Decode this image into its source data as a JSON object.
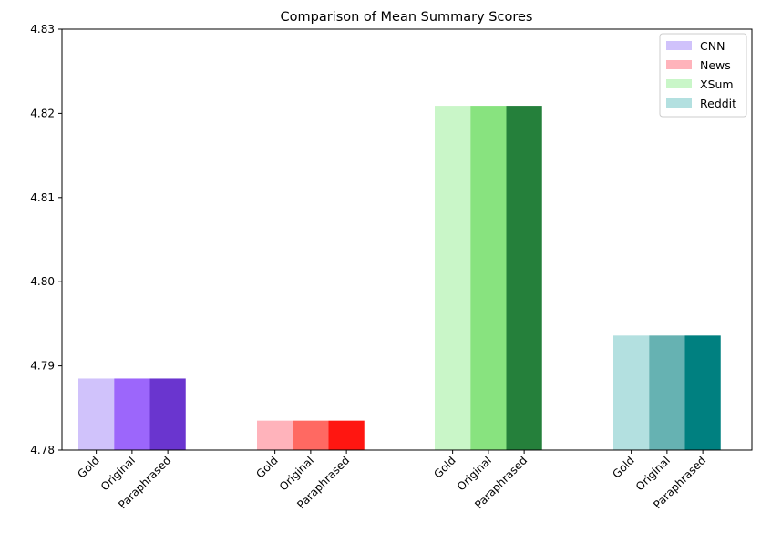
{
  "chart_data": {
    "type": "bar",
    "title": "Comparison of Mean Summary Scores",
    "xlabel": "",
    "ylabel": "",
    "ylim": [
      4.78,
      4.83
    ],
    "yticks": [
      "4.78",
      "4.79",
      "4.80",
      "4.81",
      "4.82",
      "4.83"
    ],
    "grid": false,
    "legend_position": "top-right",
    "bar_labels": [
      "Gold",
      "Original",
      "Paraphrased"
    ],
    "groups": [
      {
        "name": "CNN",
        "values": [
          4.7885,
          4.7885,
          4.7885
        ],
        "colors": [
          "#d0c2fb",
          "#9c66fb",
          "#6a35cf"
        ]
      },
      {
        "name": "News",
        "values": [
          4.7835,
          4.7835,
          4.7835
        ],
        "colors": [
          "#ffb3bb",
          "#ff6962",
          "#ff1611"
        ]
      },
      {
        "name": "XSum",
        "values": [
          4.8209,
          4.8209,
          4.8209
        ],
        "colors": [
          "#c9f6c8",
          "#88e37f",
          "#25803b"
        ]
      },
      {
        "name": "Reddit",
        "values": [
          4.7936,
          4.7936,
          4.7936
        ],
        "colors": [
          "#b3e0e0",
          "#66b2b2",
          "#008080"
        ]
      }
    ]
  }
}
